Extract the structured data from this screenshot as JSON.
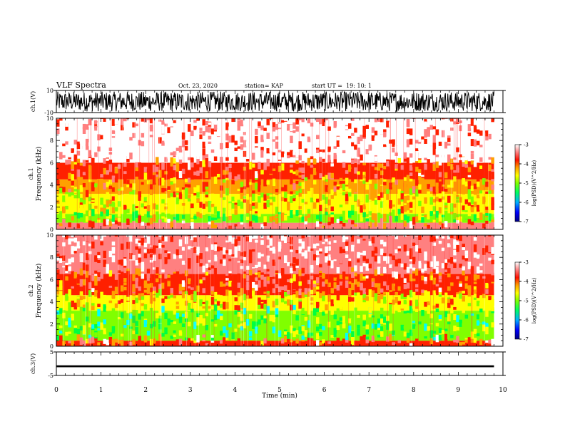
{
  "header": {
    "title": "VLF Spectra",
    "date": "Oct. 23, 2020",
    "station": "station= KAP",
    "start": "start UT =  19: 10: 1"
  },
  "chart_data": [
    {
      "type": "line",
      "panel": "ch1-waveform",
      "ylabel": "ch.1(V)",
      "ylim": [
        -10,
        10
      ],
      "y_tick_labels": [
        "10",
        "-10"
      ],
      "x_range_min": [
        0,
        9.8
      ],
      "description_values": "dense broadband waveform filling approximately -9 to 9 V",
      "series_color": "#000000"
    },
    {
      "type": "heatmap",
      "panel": "ch1-spectrogram",
      "ylabel": "ch.1\nFrequency (kHz)",
      "ylim": [
        0,
        10
      ],
      "y_ticks": [
        0,
        2,
        4,
        6,
        8,
        10
      ],
      "x_range_min": [
        0,
        9.8
      ],
      "bands": [
        {
          "from_khz": 0,
          "to_khz": 0.6,
          "level": -3.6
        },
        {
          "from_khz": 0.6,
          "to_khz": 1.4,
          "level": -4.9
        },
        {
          "from_khz": 1.4,
          "to_khz": 3.2,
          "level": -4.5
        },
        {
          "from_khz": 3.2,
          "to_khz": 4.5,
          "level": -4.2
        },
        {
          "from_khz": 4.5,
          "to_khz": 6.0,
          "level": -3.8
        },
        {
          "from_khz": 6.0,
          "to_khz": 10.0,
          "level": -3.2
        }
      ],
      "colorbar": {
        "label": "log(PSD)(V^2/Hz)",
        "range": [
          -7,
          -3
        ],
        "ticks": [
          -3,
          -4,
          -5,
          -6,
          -7
        ]
      }
    },
    {
      "type": "heatmap",
      "panel": "ch2-spectrogram",
      "ylabel": "ch.2\nFrequency (kHz)",
      "ylim": [
        0,
        10
      ],
      "y_ticks": [
        0,
        2,
        4,
        6,
        8,
        10
      ],
      "x_range_min": [
        0,
        9.8
      ],
      "bands": [
        {
          "from_khz": 0,
          "to_khz": 0.5,
          "level": -3.8
        },
        {
          "from_khz": 0.5,
          "to_khz": 3.2,
          "level": -5.1
        },
        {
          "from_khz": 3.2,
          "to_khz": 4.6,
          "level": -4.4
        },
        {
          "from_khz": 4.6,
          "to_khz": 6.5,
          "level": -3.8
        },
        {
          "from_khz": 6.5,
          "to_khz": 10.0,
          "level": -3.3
        }
      ],
      "colorbar": {
        "label": "log(PSD)(V^2/Hz)",
        "range": [
          -7,
          -3
        ],
        "ticks": [
          -3,
          -4,
          -5,
          -6,
          -7
        ]
      }
    },
    {
      "type": "line",
      "panel": "ch3-waveform",
      "ylabel": "ch.3(V)",
      "ylim": [
        -5,
        5
      ],
      "y_tick_labels": [
        "5",
        "-5"
      ],
      "x_range_min": [
        0,
        9.8
      ],
      "description_values": "thick band around -1 V",
      "series_color": "#000000"
    }
  ],
  "xaxis": {
    "label": "Time (min)",
    "ticks": [
      "0",
      "1",
      "2",
      "3",
      "4",
      "5",
      "6",
      "7",
      "8",
      "9",
      "10"
    ],
    "range": [
      0,
      10
    ]
  },
  "colors": {
    "cmap": [
      "#000080",
      "#0000ff",
      "#00a0ff",
      "#00ffff",
      "#00ff40",
      "#80ff00",
      "#ffff00",
      "#ffa000",
      "#ff2000",
      "#ff8080",
      "#ffffff"
    ]
  }
}
